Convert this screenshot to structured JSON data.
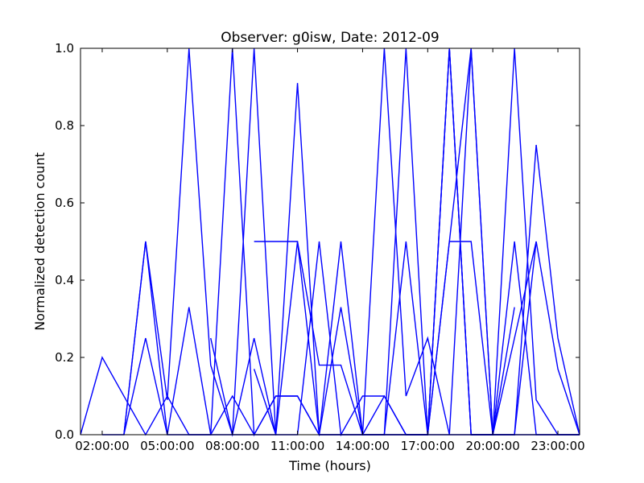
{
  "chart_data": {
    "type": "line",
    "title": "Observer: g0isw, Date: 2012-09",
    "xlabel": "Time (hours)",
    "ylabel": "Normalized detection count",
    "xlim": [
      "01:00:00",
      "24:00:00"
    ],
    "ylim": [
      0,
      1.0
    ],
    "x_ticks": [
      "02:00:00",
      "05:00:00",
      "08:00:00",
      "11:00:00",
      "14:00:00",
      "17:00:00",
      "20:00:00",
      "23:00:00"
    ],
    "y_ticks": [
      "0.0",
      "0.2",
      "0.4",
      "0.6",
      "0.8",
      "1.0"
    ],
    "grid": false,
    "legend": "none",
    "line_color": "#0000ff",
    "series": [
      {
        "x": [
          "01:00:00",
          "02:00:00",
          "04:00:00",
          "05:00:00",
          "06:00:00",
          "07:00:00",
          "08:00:00",
          "09:00:00",
          "10:00:00",
          "11:00:00",
          "12:00:00",
          "13:00:00",
          "14:00:00",
          "15:00:00",
          "16:00:00",
          "17:00:00",
          "18:00:00",
          "19:00:00",
          "20:00:00",
          "21:00:00",
          "22:00:00",
          "23:00:00",
          "24:00:00"
        ],
        "y": [
          0,
          0.2,
          0,
          0.1,
          0,
          0,
          0.1,
          0,
          0.1,
          0.1,
          0,
          0,
          0,
          0.1,
          0,
          0,
          0,
          0,
          0,
          0,
          0,
          0,
          0
        ]
      },
      {
        "x": [
          "02:00:00",
          "03:00:00",
          "04:00:00",
          "05:00:00",
          "06:00:00",
          "07:00:00",
          "08:00:00",
          "09:00:00",
          "10:00:00",
          "11:00:00",
          "12:00:00",
          "13:00:00",
          "14:00:00",
          "15:00:00",
          "16:00:00",
          "17:00:00",
          "18:00:00",
          "19:00:00",
          "20:00:00",
          "21:00:00",
          "22:00:00",
          "23:00:00",
          "24:00:00"
        ],
        "y": [
          0,
          0,
          0.5,
          0.09,
          1.0,
          0.18,
          0,
          0.25,
          0,
          0,
          0.5,
          0,
          0.1,
          0.1,
          0,
          0,
          1.0,
          0,
          0,
          1.0,
          0.09,
          0,
          0
        ]
      },
      {
        "x": [
          "03:00:00",
          "04:00:00",
          "05:00:00",
          "06:00:00",
          "07:00:00",
          "08:00:00",
          "09:00:00",
          "10:00:00",
          "11:00:00",
          "12:00:00",
          "13:00:00",
          "14:00:00",
          "15:00:00",
          "16:00:00",
          "17:00:00",
          "18:00:00",
          "19:00:00",
          "20:00:00",
          "21:00:00",
          "22:00:00",
          "23:00:00",
          "24:00:00"
        ],
        "y": [
          0,
          0.25,
          0,
          0.33,
          0,
          1.0,
          0,
          0.1,
          0.1,
          0,
          0.33,
          0,
          0,
          1.0,
          0,
          0.5,
          0.5,
          0,
          0,
          0.5,
          0.17,
          0
        ]
      },
      {
        "x": [
          "03:00:00",
          "04:00:00",
          "05:00:00",
          "06:00:00",
          "07:00:00",
          "08:00:00",
          "09:00:00",
          "10:00:00",
          "11:00:00",
          "12:00:00",
          "13:00:00",
          "14:00:00",
          "15:00:00",
          "16:00:00",
          "17:00:00",
          "18:00:00",
          "19:00:00",
          "20:00:00",
          "21:00:00",
          "22:00:00",
          "23:00:00",
          "24:00:00"
        ],
        "y": [
          0,
          0.5,
          0,
          0,
          0,
          0,
          1.0,
          0,
          0.91,
          0,
          0.5,
          0,
          1.0,
          0.1,
          0.25,
          0,
          1.0,
          0,
          0,
          0.75,
          0.25,
          0
        ]
      },
      {
        "x": [
          "07:00:00",
          "08:00:00",
          "09:00:00",
          "10:00:00",
          "11:00:00",
          "12:00:00",
          "13:00:00",
          "14:00:00",
          "15:00:00",
          "16:00:00",
          "17:00:00",
          "18:00:00",
          "19:00:00",
          "20:00:00",
          "21:00:00",
          "22:00:00",
          "23:00:00",
          "24:00:00"
        ],
        "y": [
          0.25,
          0,
          0,
          0,
          0.5,
          0.18,
          0.18,
          0,
          0,
          0.5,
          0,
          0.5,
          1.0,
          0,
          0.5,
          0,
          0,
          0
        ]
      },
      {
        "x": [
          "09:00:00",
          "10:00:00",
          "11:00:00",
          "12:00:00",
          "13:00:00",
          "14:00:00",
          "15:00:00",
          "16:00:00",
          "17:00:00",
          "18:00:00",
          "19:00:00",
          "20:00:00",
          "21:00:00"
        ],
        "y": [
          0.5,
          0.5,
          0.5,
          0,
          0,
          0,
          0,
          0,
          0,
          1.0,
          0,
          0,
          0.33
        ]
      },
      {
        "x": [
          "09:00:00",
          "10:00:00"
        ],
        "y": [
          0.17,
          0
        ]
      },
      {
        "x": [
          "15:00:00",
          "16:00:00",
          "17:00:00",
          "18:00:00",
          "19:00:00",
          "20:00:00",
          "21:00:00",
          "22:00:00"
        ],
        "y": [
          0,
          0,
          0,
          1.0,
          0,
          0,
          0.25,
          0.5
        ]
      }
    ]
  }
}
